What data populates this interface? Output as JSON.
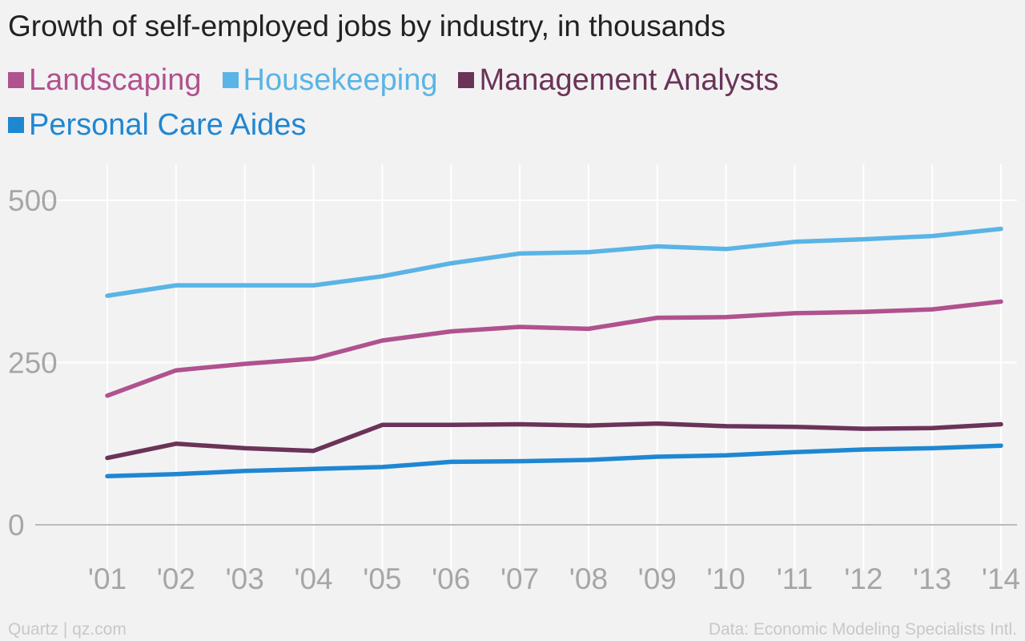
{
  "chart_data": {
    "type": "line",
    "title": "Growth of self-employed jobs by industry, in thousands",
    "categories": [
      "'01",
      "'02",
      "'03",
      "'04",
      "'05",
      "'06",
      "'07",
      "'08",
      "'09",
      "'10",
      "'11",
      "'12",
      "'13",
      "'14"
    ],
    "series": [
      {
        "name": "Landscaping",
        "color": "#b0528f",
        "values": [
          199,
          238,
          248,
          256,
          284,
          298,
          305,
          302,
          319,
          320,
          326,
          328,
          332,
          344
        ]
      },
      {
        "name": "Housekeeping",
        "color": "#5ab4e5",
        "values": [
          353,
          369,
          369,
          369,
          383,
          403,
          418,
          420,
          429,
          425,
          436,
          440,
          445,
          456
        ]
      },
      {
        "name": "Management Analysts",
        "color": "#6b3358",
        "values": [
          103,
          125,
          118,
          114,
          154,
          154,
          155,
          153,
          156,
          152,
          151,
          148,
          149,
          155
        ]
      },
      {
        "name": "Personal Care Aides",
        "color": "#1f87d2",
        "values": [
          75,
          78,
          83,
          86,
          89,
          97,
          98,
          100,
          105,
          107,
          112,
          116,
          118,
          122
        ]
      }
    ],
    "yticks": [
      0,
      250,
      500
    ],
    "ylim": [
      0,
      500
    ],
    "grid": true,
    "legend_position": "top-left"
  },
  "footer": {
    "source_left": "Quartz | qz.com",
    "source_right": "Data: Economic Modeling Specialists Intl."
  },
  "colors": {
    "background": "#f2f2f2",
    "gridline": "#ffffff",
    "tick_label": "#a6a6a6",
    "baseline": "#bbbbbb"
  }
}
